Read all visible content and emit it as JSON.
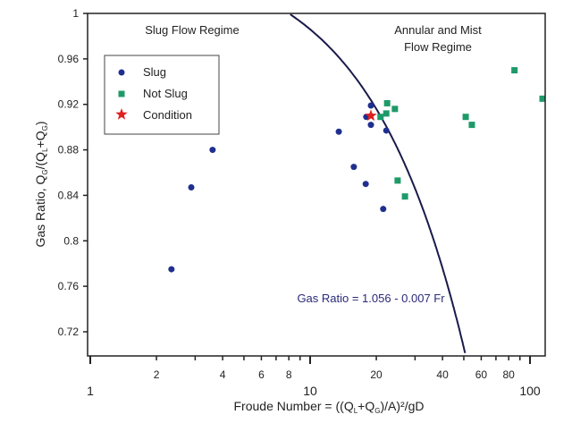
{
  "chart_data": {
    "type": "scatter",
    "title": "",
    "xlabel_parts": [
      "Froude Number = ((Q",
      "L",
      "+Q",
      "G",
      ")/A)²/gD"
    ],
    "ylabel_parts": [
      "Gas Ratio, Q",
      "G",
      "/(Q",
      "L",
      "+Q",
      "G",
      ")"
    ],
    "x_scale": "log",
    "xlim": [
      1,
      120
    ],
    "ylim": [
      0.7,
      1.0
    ],
    "x_major_ticks": [
      1,
      10,
      100
    ],
    "x_minor_tick_labels": [
      2,
      4,
      6,
      8,
      20,
      40,
      60,
      80
    ],
    "y_ticks": [
      0.72,
      0.76,
      0.8,
      0.84,
      0.88,
      0.92,
      0.96,
      1
    ],
    "y_tick_labels": [
      "0.72",
      "0.76",
      "0.8",
      "0.84",
      "0.88",
      "0.92",
      "0.96",
      "1"
    ],
    "grid": false,
    "legend_position": "top-left",
    "series": [
      {
        "name": "Slug",
        "marker": "circle",
        "color": "#1f2f8f",
        "points": [
          [
            2.34,
            0.775
          ],
          [
            2.88,
            0.847
          ],
          [
            3.6,
            0.88
          ],
          [
            13.5,
            0.896
          ],
          [
            15.8,
            0.865
          ],
          [
            17.9,
            0.85
          ],
          [
            21.5,
            0.828
          ],
          [
            18.9,
            0.919
          ],
          [
            18.9,
            0.902
          ],
          [
            18.0,
            0.909
          ],
          [
            22.2,
            0.897
          ]
        ]
      },
      {
        "name": "Not Slug",
        "marker": "square",
        "color": "#1e9a68",
        "points": [
          [
            22.4,
            0.921
          ],
          [
            24.3,
            0.916
          ],
          [
            22.2,
            0.912
          ],
          [
            20.9,
            0.909
          ],
          [
            25.0,
            0.853
          ],
          [
            27.0,
            0.839
          ],
          [
            51,
            0.909
          ],
          [
            54.4,
            0.902
          ],
          [
            85,
            0.95
          ],
          [
            114,
            0.925
          ]
        ]
      },
      {
        "name": "Condition",
        "marker": "star",
        "color": "#e02020",
        "points": [
          [
            18.9,
            0.91
          ]
        ]
      }
    ],
    "boundary_line": {
      "label": "Gas Ratio = 1.056 - 0.007 Fr",
      "intercept": 1.056,
      "slope": -0.007,
      "color": "#1a1a4a"
    },
    "annotations": {
      "left_region": "Slug Flow Regime",
      "right_region_line1": "Annular and Mist",
      "right_region_line2": "Flow Regime"
    }
  }
}
